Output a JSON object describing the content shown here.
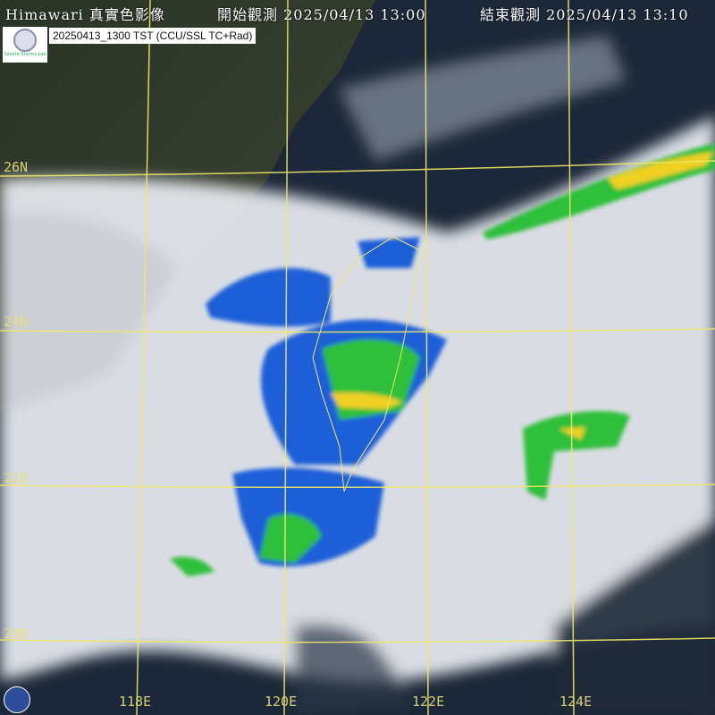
{
  "header": {
    "title": "Himawari 真實色影像",
    "start_label": "開始觀測",
    "start_time": "2025/04/13 13:00",
    "end_label": "結束觀測",
    "end_time": "2025/04/13 13:10"
  },
  "info": {
    "caption": "20250413_1300 TST (CCU/SSL TC+Rad)",
    "logo_text": "Severe Storms Lab"
  },
  "grid": {
    "latitudes": [
      "26N",
      "24N",
      "22N",
      "20N"
    ],
    "longitudes": [
      "118E",
      "120E",
      "122E",
      "124E"
    ],
    "line_color": "#f0e868"
  },
  "colors": {
    "ocean": "#1b2738",
    "land": "#2e3a2a",
    "cloud": "#e6e9ee",
    "radar_low": "#1f5fd8",
    "radar_mid": "#2fbf3a",
    "radar_high": "#f0d020"
  }
}
